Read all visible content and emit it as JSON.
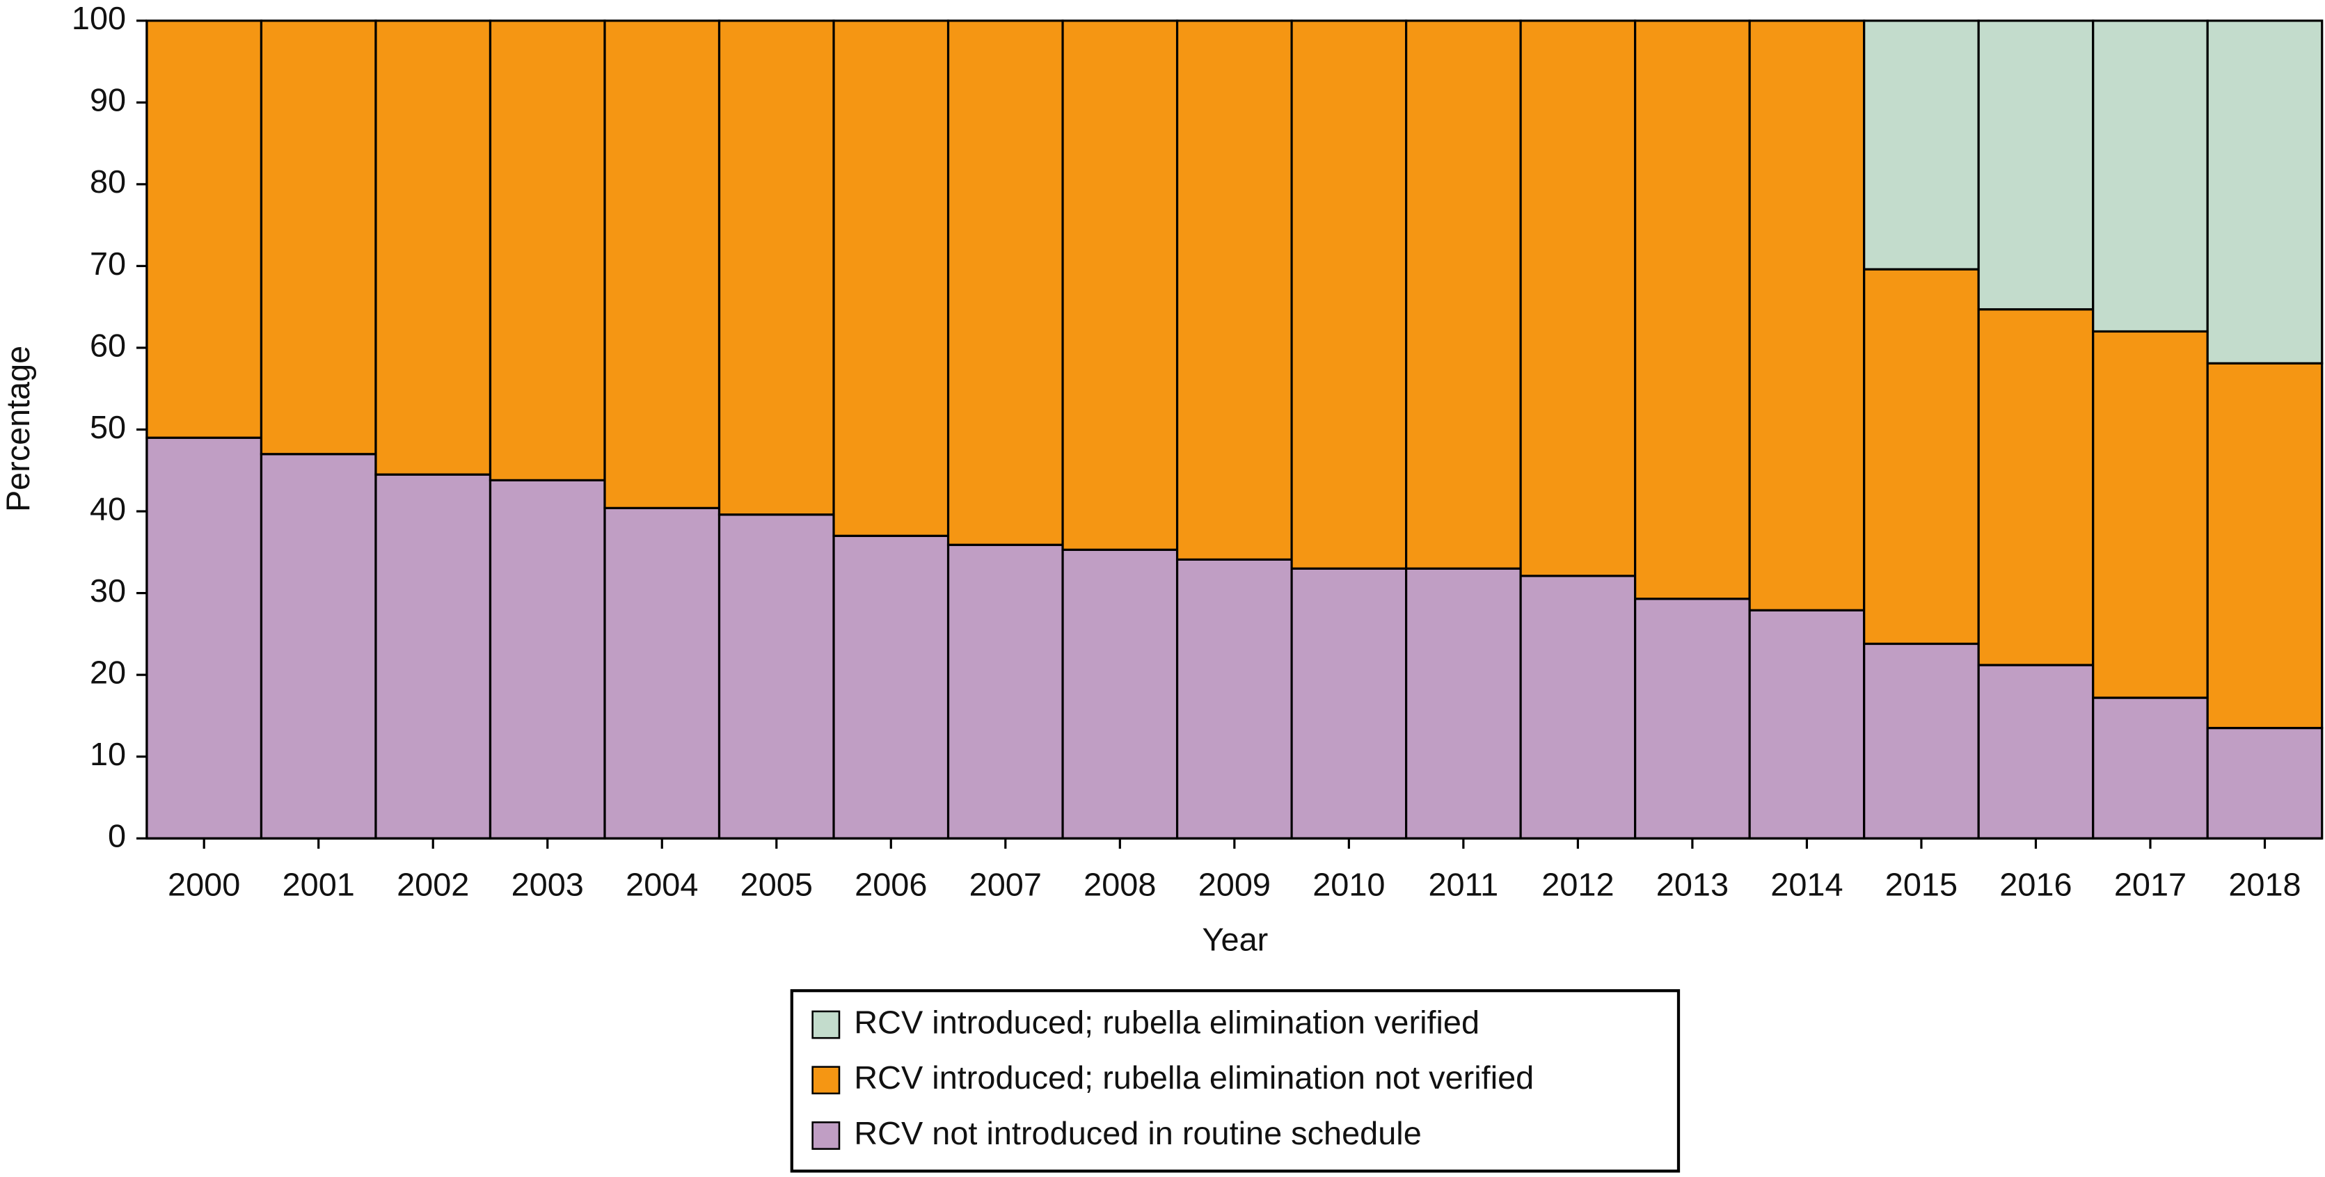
{
  "chart_data": {
    "type": "stacked_bar",
    "x_label": "Year",
    "y_label": "Percentage",
    "categories": [
      "2000",
      "2001",
      "2002",
      "2003",
      "2004",
      "2005",
      "2006",
      "2007",
      "2008",
      "2009",
      "2010",
      "2011",
      "2012",
      "2013",
      "2014",
      "2015",
      "2016",
      "2017",
      "2018"
    ],
    "series": [
      {
        "name": "RCV introduced; rubella elimination verified",
        "color": "#c3dccc",
        "values": [
          0,
          0,
          0,
          0,
          0,
          0,
          0,
          0,
          0,
          0,
          0,
          0,
          0,
          0,
          0,
          30.4,
          35.3,
          38,
          41.9
        ]
      },
      {
        "name": "RCV introduced; rubella elimination not verified",
        "color": "#f59613",
        "values": [
          51,
          53,
          55.5,
          56.2,
          59.6,
          60.4,
          63,
          64.1,
          64.7,
          65.9,
          67,
          67,
          67.9,
          70.7,
          72.1,
          45.8,
          43.5,
          44.8,
          44.6
        ]
      },
      {
        "name": "RCV not introduced in routine schedule",
        "color": "#c09ec4",
        "values": [
          49,
          47,
          44.5,
          43.8,
          40.4,
          39.6,
          37,
          35.9,
          35.3,
          34.1,
          33,
          33,
          32.1,
          29.3,
          27.9,
          23.8,
          21.2,
          17.2,
          13.5
        ]
      }
    ],
    "ylim": [
      0,
      100
    ],
    "yticks": [
      0,
      10,
      20,
      30,
      40,
      50,
      60,
      70,
      80,
      90,
      100
    ]
  }
}
